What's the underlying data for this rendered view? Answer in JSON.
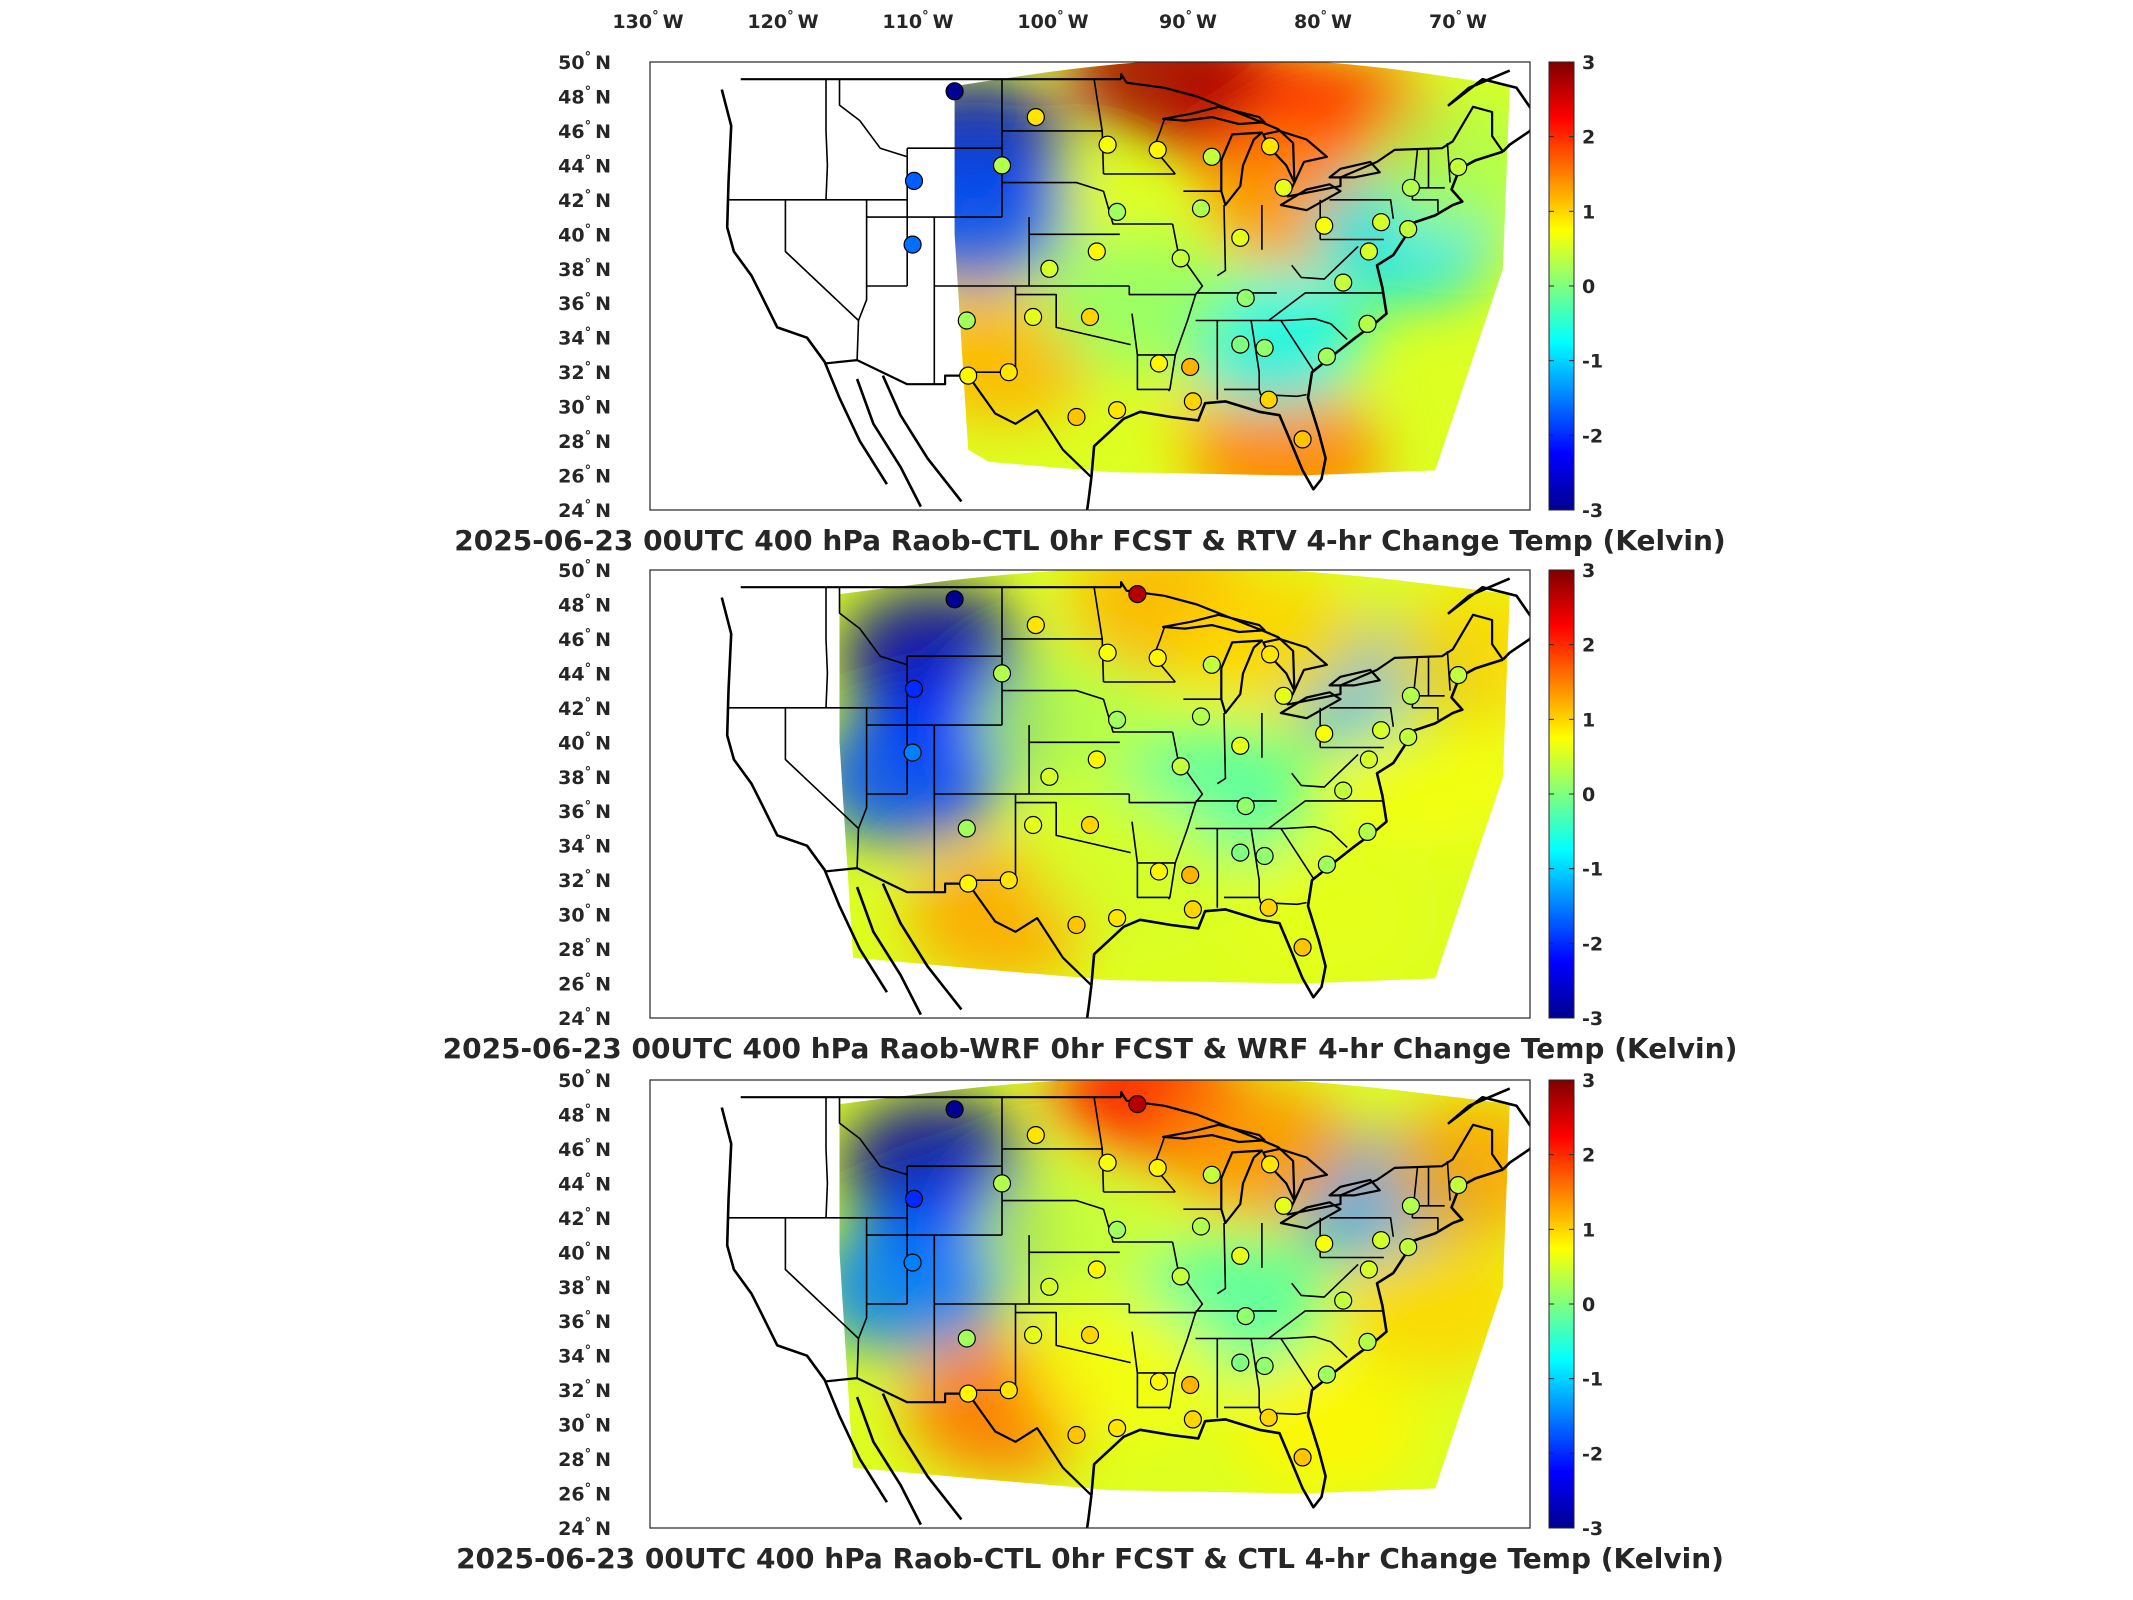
{
  "chart_data": {
    "type": "heatmap",
    "colorbar": {
      "colormap": "jet",
      "range": [
        -3,
        3
      ],
      "ticks": [
        3,
        2,
        1,
        0,
        -1,
        -2,
        -3
      ]
    },
    "longitude_ticks": [
      {
        "deg": "130",
        "hemi": "W",
        "value": -130
      },
      {
        "deg": "120",
        "hemi": "W",
        "value": -120
      },
      {
        "deg": "110",
        "hemi": "W",
        "value": -110
      },
      {
        "deg": "100",
        "hemi": "W",
        "value": -100
      },
      {
        "deg": "90",
        "hemi": "W",
        "value": -90
      },
      {
        "deg": "80",
        "hemi": "W",
        "value": -80
      },
      {
        "deg": "70",
        "hemi": "W",
        "value": -70
      }
    ],
    "latitude_ticks": [
      {
        "deg": "50",
        "hemi": "N",
        "value": 50
      },
      {
        "deg": "48",
        "hemi": "N",
        "value": 48
      },
      {
        "deg": "46",
        "hemi": "N",
        "value": 46
      },
      {
        "deg": "44",
        "hemi": "N",
        "value": 44
      },
      {
        "deg": "42",
        "hemi": "N",
        "value": 42
      },
      {
        "deg": "40",
        "hemi": "N",
        "value": 40
      },
      {
        "deg": "38",
        "hemi": "N",
        "value": 38
      },
      {
        "deg": "36",
        "hemi": "N",
        "value": 36
      },
      {
        "deg": "34",
        "hemi": "N",
        "value": 34
      },
      {
        "deg": "32",
        "hemi": "N",
        "value": 32
      },
      {
        "deg": "30",
        "hemi": "N",
        "value": 30
      },
      {
        "deg": "28",
        "hemi": "N",
        "value": 28
      },
      {
        "deg": "26",
        "hemi": "N",
        "value": 26
      },
      {
        "deg": "24",
        "hemi": "N",
        "value": 24
      }
    ],
    "panels": [
      {
        "title": "2025-06-23 00UTC 400 hPa Raob-CTL 0hr FCST & RTV 4-hr Change Temp (Kelvin)",
        "field_west_lon": -107.5,
        "field_blobs": [
          {
            "lon": -85,
            "lat": 47,
            "value": 2.2
          },
          {
            "lon": -78,
            "lat": 46,
            "value": 2.0
          },
          {
            "lon": -92,
            "lat": 49.5,
            "value": 2.8
          },
          {
            "lon": -82,
            "lat": 42,
            "value": 1.4
          },
          {
            "lon": -104,
            "lat": 33,
            "value": 1.2
          },
          {
            "lon": -85,
            "lat": 30,
            "value": 1.0
          },
          {
            "lon": -83,
            "lat": 27,
            "value": 1.5
          },
          {
            "lon": -100,
            "lat": 40,
            "value": 0.6
          },
          {
            "lon": -106,
            "lat": 45,
            "value": -2.6
          },
          {
            "lon": -106,
            "lat": 41,
            "value": -1.8
          },
          {
            "lon": -84,
            "lat": 34,
            "value": -0.8
          },
          {
            "lon": -74,
            "lat": 40,
            "value": -0.9
          },
          {
            "lon": -94,
            "lat": 36,
            "value": 0.1
          },
          {
            "lon": -70,
            "lat": 44,
            "value": 0.3
          }
        ],
        "stations": [
          {
            "lon": -107.5,
            "lat": 48.3,
            "value": -2.9
          },
          {
            "lon": -110.5,
            "lat": 43.1,
            "value": -1.7
          },
          {
            "lon": -110.6,
            "lat": 39.4,
            "value": -1.6
          },
          {
            "lon": -101.5,
            "lat": 46.8,
            "value": 0.9
          },
          {
            "lon": -96.2,
            "lat": 45.2,
            "value": 0.7
          },
          {
            "lon": -104.0,
            "lat": 44.0,
            "value": 0.3
          },
          {
            "lon": -92.5,
            "lat": 44.9,
            "value": 0.8
          },
          {
            "lon": -84.2,
            "lat": 45.1,
            "value": 0.9
          },
          {
            "lon": -83.2,
            "lat": 42.7,
            "value": 0.6
          },
          {
            "lon": -88.5,
            "lat": 44.5,
            "value": 0.4
          },
          {
            "lon": -89.3,
            "lat": 41.5,
            "value": 0.3
          },
          {
            "lon": -95.5,
            "lat": 41.3,
            "value": 0.2
          },
          {
            "lon": -100.5,
            "lat": 38.0,
            "value": 0.5
          },
          {
            "lon": -97.0,
            "lat": 39.0,
            "value": 0.8
          },
          {
            "lon": -90.8,
            "lat": 38.6,
            "value": 0.4
          },
          {
            "lon": -86.4,
            "lat": 39.8,
            "value": 0.6
          },
          {
            "lon": -80.2,
            "lat": 40.5,
            "value": 0.7
          },
          {
            "lon": -76.9,
            "lat": 39.0,
            "value": 0.5
          },
          {
            "lon": -78.8,
            "lat": 37.2,
            "value": 0.4
          },
          {
            "lon": -77.0,
            "lat": 34.8,
            "value": 0.3
          },
          {
            "lon": -80.0,
            "lat": 32.9,
            "value": 0.2
          },
          {
            "lon": -84.6,
            "lat": 33.4,
            "value": 0.1
          },
          {
            "lon": -86.4,
            "lat": 33.6,
            "value": 0.0
          },
          {
            "lon": -90.1,
            "lat": 32.3,
            "value": 1.2
          },
          {
            "lon": -86.0,
            "lat": 36.3,
            "value": 0.1
          },
          {
            "lon": -92.4,
            "lat": 32.5,
            "value": 0.8
          },
          {
            "lon": -97.5,
            "lat": 35.2,
            "value": 1.0
          },
          {
            "lon": -101.7,
            "lat": 35.2,
            "value": 0.6
          },
          {
            "lon": -106.6,
            "lat": 35.0,
            "value": 0.2
          },
          {
            "lon": -103.5,
            "lat": 32.0,
            "value": 0.9
          },
          {
            "lon": -106.5,
            "lat": 31.8,
            "value": 0.8
          },
          {
            "lon": -98.5,
            "lat": 29.4,
            "value": 1.1
          },
          {
            "lon": -95.5,
            "lat": 29.8,
            "value": 0.9
          },
          {
            "lon": -89.9,
            "lat": 30.3,
            "value": 1.0
          },
          {
            "lon": -84.3,
            "lat": 30.4,
            "value": 1.0
          },
          {
            "lon": -81.8,
            "lat": 28.1,
            "value": 1.1
          },
          {
            "lon": -73.8,
            "lat": 42.7,
            "value": 0.3
          },
          {
            "lon": -70.3,
            "lat": 43.9,
            "value": 0.4
          },
          {
            "lon": -76.0,
            "lat": 40.7,
            "value": 0.5
          },
          {
            "lon": -74.0,
            "lat": 40.3,
            "value": 0.4
          }
        ]
      },
      {
        "title": "2025-06-23 00UTC 400 hPa Raob-WRF 0hr FCST & WRF 4-hr Change Temp (Kelvin)",
        "field_west_lon": -116.0,
        "field_blobs": [
          {
            "lon": -109,
            "lat": 45,
            "value": -2.8
          },
          {
            "lon": -107,
            "lat": 41,
            "value": -2.2
          },
          {
            "lon": -111,
            "lat": 38,
            "value": -1.8
          },
          {
            "lon": -76,
            "lat": 43,
            "value": -1.2
          },
          {
            "lon": -92,
            "lat": 48,
            "value": 1.2
          },
          {
            "lon": -84,
            "lat": 46,
            "value": 1.0
          },
          {
            "lon": -104,
            "lat": 30,
            "value": 1.3
          },
          {
            "lon": -99,
            "lat": 41,
            "value": 0.3
          },
          {
            "lon": -88,
            "lat": 37,
            "value": -0.3
          },
          {
            "lon": -72,
            "lat": 38,
            "value": 0.7
          },
          {
            "lon": -80,
            "lat": 30,
            "value": 0.6
          },
          {
            "lon": -95,
            "lat": 33,
            "value": 0.5
          },
          {
            "lon": -69,
            "lat": 45,
            "value": 1.0
          }
        ],
        "stations": [
          {
            "lon": -107.5,
            "lat": 48.3,
            "value": -2.9
          },
          {
            "lon": -110.5,
            "lat": 43.1,
            "value": -2.0
          },
          {
            "lon": -110.6,
            "lat": 39.4,
            "value": -1.5
          },
          {
            "lon": -94.0,
            "lat": 48.6,
            "value": 2.7
          },
          {
            "lon": -101.5,
            "lat": 46.8,
            "value": 0.9
          },
          {
            "lon": -96.2,
            "lat": 45.2,
            "value": 0.7
          },
          {
            "lon": -104.0,
            "lat": 44.0,
            "value": 0.3
          },
          {
            "lon": -92.5,
            "lat": 44.9,
            "value": 0.8
          },
          {
            "lon": -84.2,
            "lat": 45.1,
            "value": 0.9
          },
          {
            "lon": -83.2,
            "lat": 42.7,
            "value": 0.6
          },
          {
            "lon": -88.5,
            "lat": 44.5,
            "value": 0.4
          },
          {
            "lon": -89.3,
            "lat": 41.5,
            "value": 0.3
          },
          {
            "lon": -95.5,
            "lat": 41.3,
            "value": 0.2
          },
          {
            "lon": -100.5,
            "lat": 38.0,
            "value": 0.5
          },
          {
            "lon": -97.0,
            "lat": 39.0,
            "value": 0.8
          },
          {
            "lon": -90.8,
            "lat": 38.6,
            "value": 0.4
          },
          {
            "lon": -86.4,
            "lat": 39.8,
            "value": 0.6
          },
          {
            "lon": -80.2,
            "lat": 40.5,
            "value": 0.7
          },
          {
            "lon": -76.9,
            "lat": 39.0,
            "value": 0.5
          },
          {
            "lon": -78.8,
            "lat": 37.2,
            "value": 0.4
          },
          {
            "lon": -77.0,
            "lat": 34.8,
            "value": 0.3
          },
          {
            "lon": -80.0,
            "lat": 32.9,
            "value": 0.2
          },
          {
            "lon": -84.6,
            "lat": 33.4,
            "value": 0.1
          },
          {
            "lon": -86.4,
            "lat": 33.6,
            "value": 0.0
          },
          {
            "lon": -90.1,
            "lat": 32.3,
            "value": 1.2
          },
          {
            "lon": -86.0,
            "lat": 36.3,
            "value": 0.1
          },
          {
            "lon": -92.4,
            "lat": 32.5,
            "value": 0.8
          },
          {
            "lon": -97.5,
            "lat": 35.2,
            "value": 1.0
          },
          {
            "lon": -101.7,
            "lat": 35.2,
            "value": 0.6
          },
          {
            "lon": -106.6,
            "lat": 35.0,
            "value": 0.2
          },
          {
            "lon": -103.5,
            "lat": 32.0,
            "value": 0.9
          },
          {
            "lon": -106.5,
            "lat": 31.8,
            "value": 0.8
          },
          {
            "lon": -98.5,
            "lat": 29.4,
            "value": 1.1
          },
          {
            "lon": -95.5,
            "lat": 29.8,
            "value": 0.9
          },
          {
            "lon": -89.9,
            "lat": 30.3,
            "value": 1.0
          },
          {
            "lon": -84.3,
            "lat": 30.4,
            "value": 1.0
          },
          {
            "lon": -81.8,
            "lat": 28.1,
            "value": 1.1
          },
          {
            "lon": -73.8,
            "lat": 42.7,
            "value": 0.3
          },
          {
            "lon": -70.3,
            "lat": 43.9,
            "value": 0.4
          },
          {
            "lon": -76.0,
            "lat": 40.7,
            "value": 0.5
          },
          {
            "lon": -74.0,
            "lat": 40.3,
            "value": 0.4
          }
        ]
      },
      {
        "title": "2025-06-23 00UTC 400 hPa Raob-CTL 0hr FCST & CTL 4-hr Change Temp (Kelvin)",
        "field_west_lon": -116.0,
        "field_blobs": [
          {
            "lon": -109,
            "lat": 45,
            "value": -2.8
          },
          {
            "lon": -107,
            "lat": 41,
            "value": -2.0
          },
          {
            "lon": -111,
            "lat": 38,
            "value": -1.5
          },
          {
            "lon": -76,
            "lat": 43,
            "value": -1.3
          },
          {
            "lon": -93,
            "lat": 49,
            "value": 2.2
          },
          {
            "lon": -85,
            "lat": 46,
            "value": 1.4
          },
          {
            "lon": -104,
            "lat": 31,
            "value": 1.6
          },
          {
            "lon": -99,
            "lat": 41,
            "value": 0.4
          },
          {
            "lon": -87,
            "lat": 37,
            "value": -0.3
          },
          {
            "lon": -72,
            "lat": 37,
            "value": 1.0
          },
          {
            "lon": -80,
            "lat": 30,
            "value": 0.8
          },
          {
            "lon": -95,
            "lat": 33,
            "value": 0.7
          },
          {
            "lon": -69,
            "lat": 45,
            "value": 1.3
          }
        ],
        "stations": [
          {
            "lon": -107.5,
            "lat": 48.3,
            "value": -2.9
          },
          {
            "lon": -110.5,
            "lat": 43.1,
            "value": -2.0
          },
          {
            "lon": -110.6,
            "lat": 39.4,
            "value": -1.5
          },
          {
            "lon": -94.0,
            "lat": 48.6,
            "value": 2.7
          },
          {
            "lon": -101.5,
            "lat": 46.8,
            "value": 0.9
          },
          {
            "lon": -96.2,
            "lat": 45.2,
            "value": 0.7
          },
          {
            "lon": -104.0,
            "lat": 44.0,
            "value": 0.3
          },
          {
            "lon": -92.5,
            "lat": 44.9,
            "value": 0.8
          },
          {
            "lon": -84.2,
            "lat": 45.1,
            "value": 0.9
          },
          {
            "lon": -83.2,
            "lat": 42.7,
            "value": 0.6
          },
          {
            "lon": -88.5,
            "lat": 44.5,
            "value": 0.4
          },
          {
            "lon": -89.3,
            "lat": 41.5,
            "value": 0.3
          },
          {
            "lon": -95.5,
            "lat": 41.3,
            "value": 0.2
          },
          {
            "lon": -100.5,
            "lat": 38.0,
            "value": 0.5
          },
          {
            "lon": -97.0,
            "lat": 39.0,
            "value": 0.8
          },
          {
            "lon": -90.8,
            "lat": 38.6,
            "value": 0.4
          },
          {
            "lon": -86.4,
            "lat": 39.8,
            "value": 0.6
          },
          {
            "lon": -80.2,
            "lat": 40.5,
            "value": 0.7
          },
          {
            "lon": -76.9,
            "lat": 39.0,
            "value": 0.5
          },
          {
            "lon": -78.8,
            "lat": 37.2,
            "value": 0.4
          },
          {
            "lon": -77.0,
            "lat": 34.8,
            "value": 0.3
          },
          {
            "lon": -80.0,
            "lat": 32.9,
            "value": 0.2
          },
          {
            "lon": -84.6,
            "lat": 33.4,
            "value": 0.1
          },
          {
            "lon": -86.4,
            "lat": 33.6,
            "value": 0.0
          },
          {
            "lon": -90.1,
            "lat": 32.3,
            "value": 1.2
          },
          {
            "lon": -86.0,
            "lat": 36.3,
            "value": 0.1
          },
          {
            "lon": -92.4,
            "lat": 32.5,
            "value": 0.8
          },
          {
            "lon": -97.5,
            "lat": 35.2,
            "value": 1.0
          },
          {
            "lon": -101.7,
            "lat": 35.2,
            "value": 0.6
          },
          {
            "lon": -106.6,
            "lat": 35.0,
            "value": 0.2
          },
          {
            "lon": -103.5,
            "lat": 32.0,
            "value": 0.9
          },
          {
            "lon": -106.5,
            "lat": 31.8,
            "value": 0.8
          },
          {
            "lon": -98.5,
            "lat": 29.4,
            "value": 1.1
          },
          {
            "lon": -95.5,
            "lat": 29.8,
            "value": 0.9
          },
          {
            "lon": -89.9,
            "lat": 30.3,
            "value": 1.0
          },
          {
            "lon": -84.3,
            "lat": 30.4,
            "value": 1.0
          },
          {
            "lon": -81.8,
            "lat": 28.1,
            "value": 1.1
          },
          {
            "lon": -73.8,
            "lat": 42.7,
            "value": 0.3
          },
          {
            "lon": -70.3,
            "lat": 43.9,
            "value": 0.4
          },
          {
            "lon": -76.0,
            "lat": 40.7,
            "value": 0.5
          },
          {
            "lon": -74.0,
            "lat": 40.3,
            "value": 0.4
          }
        ]
      }
    ]
  }
}
